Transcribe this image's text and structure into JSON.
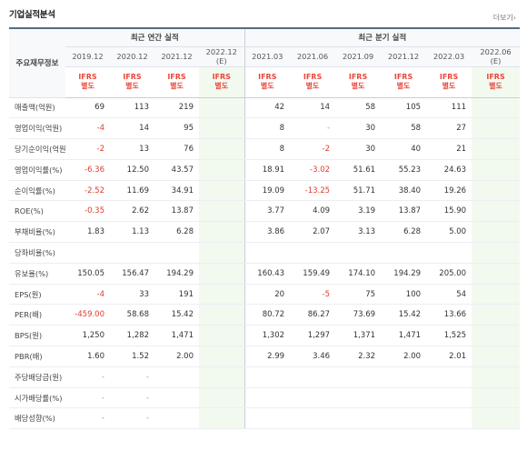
{
  "title": "기업실적분석",
  "more_link": "더보기",
  "more_arrow": "›",
  "row_header_label": "주요재무정보",
  "groups": {
    "annual": "최근 연간 실적",
    "quarterly": "최근 분기 실적"
  },
  "annual_years": [
    "2019.12",
    "2020.12",
    "2021.12"
  ],
  "annual_estimate": {
    "year": "2022.12",
    "tag": "(E)"
  },
  "quarter_years": [
    "2021.03",
    "2021.06",
    "2021.09",
    "2021.12",
    "2022.03"
  ],
  "quarter_estimate": {
    "year": "2022.06",
    "tag": "(E)"
  },
  "ifrs": {
    "line1": "IFRS",
    "line2": "별도"
  },
  "rows": [
    {
      "label": "매출액(억원)",
      "annual": [
        "69",
        "113",
        "219",
        ""
      ],
      "quarter": [
        "42",
        "14",
        "58",
        "105",
        "111",
        ""
      ]
    },
    {
      "label": "영업이익(억원)",
      "annual": [
        "-4",
        "14",
        "95",
        ""
      ],
      "quarter": [
        "8",
        "-",
        "30",
        "58",
        "27",
        ""
      ]
    },
    {
      "label": "당기순이익(억원)",
      "annual": [
        "-2",
        "13",
        "76",
        ""
      ],
      "quarter": [
        "8",
        "-2",
        "30",
        "40",
        "21",
        ""
      ]
    },
    {
      "label": "영업이익률(%)",
      "annual": [
        "-6.36",
        "12.50",
        "43.57",
        ""
      ],
      "quarter": [
        "18.91",
        "-3.02",
        "51.61",
        "55.23",
        "24.63",
        ""
      ]
    },
    {
      "label": "순이익률(%)",
      "annual": [
        "-2.52",
        "11.69",
        "34.91",
        ""
      ],
      "quarter": [
        "19.09",
        "-13.25",
        "51.71",
        "38.40",
        "19.26",
        ""
      ]
    },
    {
      "label": "ROE(%)",
      "annual": [
        "-0.35",
        "2.62",
        "13.87",
        ""
      ],
      "quarter": [
        "3.77",
        "4.09",
        "3.19",
        "13.87",
        "15.90",
        ""
      ]
    },
    {
      "label": "부채비율(%)",
      "annual": [
        "1.83",
        "1.13",
        "6.28",
        ""
      ],
      "quarter": [
        "3.86",
        "2.07",
        "3.13",
        "6.28",
        "5.00",
        ""
      ]
    },
    {
      "label": "당좌비율(%)",
      "annual": [
        "",
        "",
        "",
        ""
      ],
      "quarter": [
        "",
        "",
        "",
        "",
        "",
        ""
      ]
    },
    {
      "label": "유보율(%)",
      "annual": [
        "150.05",
        "156.47",
        "194.29",
        ""
      ],
      "quarter": [
        "160.43",
        "159.49",
        "174.10",
        "194.29",
        "205.00",
        ""
      ]
    },
    {
      "label": "EPS(원)",
      "annual": [
        "-4",
        "33",
        "191",
        ""
      ],
      "quarter": [
        "20",
        "-5",
        "75",
        "100",
        "54",
        ""
      ]
    },
    {
      "label": "PER(배)",
      "annual": [
        "-459.00",
        "58.68",
        "15.42",
        ""
      ],
      "quarter": [
        "80.72",
        "86.27",
        "73.69",
        "15.42",
        "13.66",
        ""
      ]
    },
    {
      "label": "BPS(원)",
      "annual": [
        "1,250",
        "1,282",
        "1,471",
        ""
      ],
      "quarter": [
        "1,302",
        "1,297",
        "1,371",
        "1,471",
        "1,525",
        ""
      ]
    },
    {
      "label": "PBR(배)",
      "annual": [
        "1.60",
        "1.52",
        "2.00",
        ""
      ],
      "quarter": [
        "2.99",
        "3.46",
        "2.32",
        "2.00",
        "2.01",
        ""
      ]
    },
    {
      "label": "주당배당금(원)",
      "annual": [
        "-",
        "-",
        "",
        ""
      ],
      "quarter": [
        "",
        "",
        "",
        "",
        "",
        ""
      ]
    },
    {
      "label": "시가배당률(%)",
      "annual": [
        "-",
        "-",
        "",
        ""
      ],
      "quarter": [
        "",
        "",
        "",
        "",
        "",
        ""
      ]
    },
    {
      "label": "배당성향(%)",
      "annual": [
        "-",
        "-",
        "",
        ""
      ],
      "quarter": [
        "",
        "",
        "",
        "",
        "",
        ""
      ]
    }
  ],
  "colors": {
    "negative": "#e23b2e",
    "ifrs": "#e8483b",
    "estimate_bg": "#f2f9ef",
    "header_border": "#5a6b82"
  }
}
